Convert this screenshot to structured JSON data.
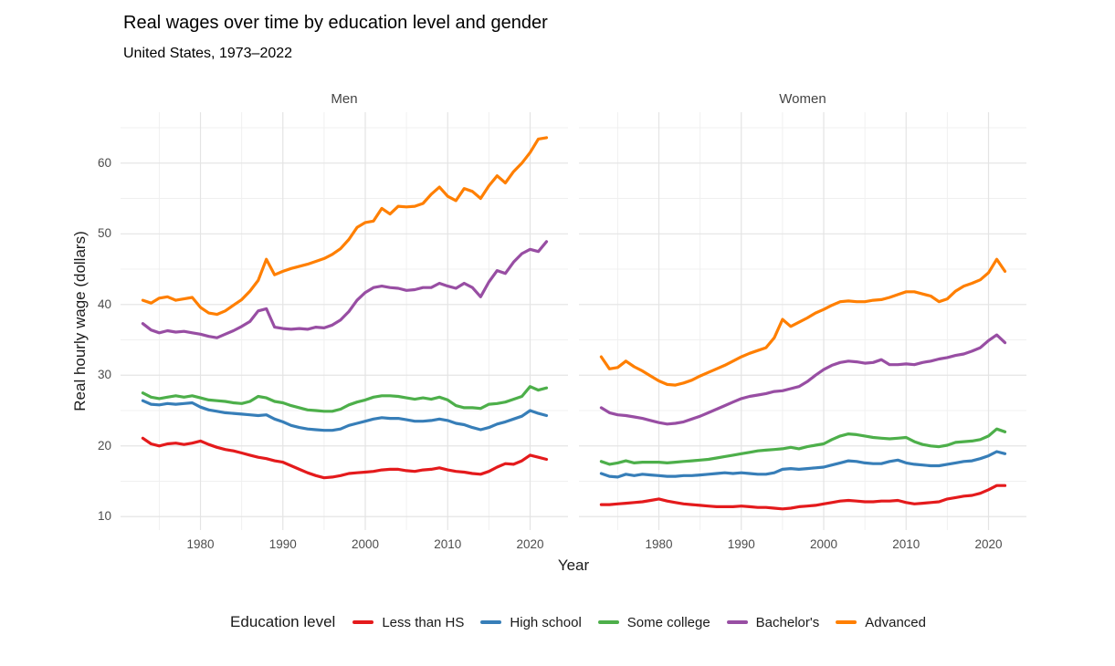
{
  "title": "Real wages over time by education level and gender",
  "subtitle": "United States, 1973–2022",
  "axes": {
    "x_label": "Year",
    "y_label": "Real hourly wage (dollars)",
    "y_ticks": [
      10,
      20,
      30,
      40,
      50,
      60
    ],
    "y_minor_ticks": [
      15,
      25,
      35,
      45,
      55,
      65
    ],
    "x_ticks": [
      1980,
      1990,
      2000,
      2010,
      2020
    ],
    "x_minor_ticks": [
      1975,
      1985,
      1995,
      2005,
      2015,
      2025
    ]
  },
  "legend": {
    "title": "Education level",
    "items": [
      {
        "label": "Less than HS",
        "color": "#E41A1C"
      },
      {
        "label": "High school",
        "color": "#377EB8"
      },
      {
        "label": "Some college",
        "color": "#4DAF4A"
      },
      {
        "label": "Bachelor's",
        "color": "#984EA3"
      },
      {
        "label": "Advanced",
        "color": "#FF7F00"
      }
    ]
  },
  "style": {
    "grid_major_color": "#e4e4e4",
    "grid_minor_color": "#f0f0f0",
    "line_width": 3.2
  },
  "chart_data": {
    "type": "line",
    "title": "Real wages over time by education level and gender",
    "subtitle": "United States, 1973–2022",
    "xlabel": "Year",
    "ylabel": "Real hourly wage (dollars)",
    "facets": [
      "Men",
      "Women"
    ],
    "legend_position": "bottom",
    "grid": true,
    "xlim": [
      1970.3,
      2024.6
    ],
    "ylim": [
      8.1,
      67.2
    ],
    "x": [
      1973,
      1974,
      1975,
      1976,
      1977,
      1978,
      1979,
      1980,
      1981,
      1982,
      1983,
      1984,
      1985,
      1986,
      1987,
      1988,
      1989,
      1990,
      1991,
      1992,
      1993,
      1994,
      1995,
      1996,
      1997,
      1998,
      1999,
      2000,
      2001,
      2002,
      2003,
      2004,
      2005,
      2006,
      2007,
      2008,
      2009,
      2010,
      2011,
      2012,
      2013,
      2014,
      2015,
      2016,
      2017,
      2018,
      2019,
      2020,
      2021,
      2022
    ],
    "series": [
      {
        "name": "Less than HS",
        "color": "#E41A1C",
        "men": [
          21.1,
          20.3,
          20.0,
          20.3,
          20.4,
          20.2,
          20.4,
          20.7,
          20.2,
          19.8,
          19.5,
          19.3,
          19.0,
          18.7,
          18.4,
          18.2,
          17.9,
          17.7,
          17.2,
          16.7,
          16.2,
          15.8,
          15.5,
          15.6,
          15.8,
          16.1,
          16.2,
          16.3,
          16.4,
          16.6,
          16.7,
          16.7,
          16.5,
          16.4,
          16.6,
          16.7,
          16.9,
          16.6,
          16.4,
          16.3,
          16.1,
          16.0,
          16.4,
          17.0,
          17.5,
          17.4,
          17.9,
          18.7,
          18.4,
          18.1
        ],
        "women": [
          11.7,
          11.7,
          11.8,
          11.9,
          12.0,
          12.1,
          12.3,
          12.5,
          12.2,
          12.0,
          11.8,
          11.7,
          11.6,
          11.5,
          11.4,
          11.4,
          11.4,
          11.5,
          11.4,
          11.3,
          11.3,
          11.2,
          11.1,
          11.2,
          11.4,
          11.5,
          11.6,
          11.8,
          12.0,
          12.2,
          12.3,
          12.2,
          12.1,
          12.1,
          12.2,
          12.2,
          12.3,
          12.0,
          11.8,
          11.9,
          12.0,
          12.1,
          12.5,
          12.7,
          12.9,
          13.0,
          13.3,
          13.8,
          14.4,
          14.4
        ]
      },
      {
        "name": "High school",
        "color": "#377EB8",
        "men": [
          26.4,
          25.9,
          25.8,
          26.0,
          25.9,
          26.0,
          26.1,
          25.5,
          25.1,
          24.9,
          24.7,
          24.6,
          24.5,
          24.4,
          24.3,
          24.4,
          23.8,
          23.4,
          22.9,
          22.6,
          22.4,
          22.3,
          22.2,
          22.2,
          22.4,
          22.9,
          23.2,
          23.5,
          23.8,
          24.0,
          23.9,
          23.9,
          23.7,
          23.5,
          23.5,
          23.6,
          23.8,
          23.6,
          23.2,
          23.0,
          22.6,
          22.3,
          22.6,
          23.1,
          23.4,
          23.8,
          24.2,
          25.0,
          24.6,
          24.3
        ],
        "women": [
          16.1,
          15.7,
          15.6,
          16.0,
          15.8,
          16.0,
          15.9,
          15.8,
          15.7,
          15.7,
          15.8,
          15.8,
          15.9,
          16.0,
          16.1,
          16.2,
          16.1,
          16.2,
          16.1,
          16.0,
          16.0,
          16.2,
          16.7,
          16.8,
          16.7,
          16.8,
          16.9,
          17.0,
          17.3,
          17.6,
          17.9,
          17.8,
          17.6,
          17.5,
          17.5,
          17.8,
          18.0,
          17.6,
          17.4,
          17.3,
          17.2,
          17.2,
          17.4,
          17.6,
          17.8,
          17.9,
          18.2,
          18.6,
          19.2,
          18.9
        ]
      },
      {
        "name": "Some college",
        "color": "#4DAF4A",
        "men": [
          27.5,
          26.9,
          26.7,
          26.9,
          27.1,
          26.9,
          27.1,
          26.8,
          26.5,
          26.4,
          26.3,
          26.1,
          26.0,
          26.3,
          27.0,
          26.8,
          26.3,
          26.1,
          25.7,
          25.4,
          25.1,
          25.0,
          24.9,
          24.9,
          25.2,
          25.8,
          26.2,
          26.5,
          26.9,
          27.1,
          27.1,
          27.0,
          26.8,
          26.6,
          26.8,
          26.6,
          26.9,
          26.5,
          25.7,
          25.4,
          25.4,
          25.3,
          25.9,
          26.0,
          26.2,
          26.6,
          27.0,
          28.4,
          27.9,
          28.2
        ],
        "women": [
          17.8,
          17.4,
          17.6,
          17.9,
          17.6,
          17.7,
          17.7,
          17.7,
          17.6,
          17.7,
          17.8,
          17.9,
          18.0,
          18.1,
          18.3,
          18.5,
          18.7,
          18.9,
          19.1,
          19.3,
          19.4,
          19.5,
          19.6,
          19.8,
          19.6,
          19.9,
          20.1,
          20.3,
          20.9,
          21.4,
          21.7,
          21.6,
          21.4,
          21.2,
          21.1,
          21.0,
          21.1,
          21.2,
          20.6,
          20.2,
          20.0,
          19.9,
          20.1,
          20.5,
          20.6,
          20.7,
          20.9,
          21.4,
          22.4,
          22.0
        ]
      },
      {
        "name": "Bachelor's",
        "color": "#984EA3",
        "men": [
          37.3,
          36.4,
          36.0,
          36.3,
          36.1,
          36.2,
          36.0,
          35.8,
          35.5,
          35.3,
          35.8,
          36.3,
          36.9,
          37.6,
          39.1,
          39.4,
          36.8,
          36.6,
          36.5,
          36.6,
          36.5,
          36.8,
          36.7,
          37.1,
          37.8,
          39.0,
          40.6,
          41.7,
          42.4,
          42.6,
          42.4,
          42.3,
          42.0,
          42.1,
          42.4,
          42.4,
          43.0,
          42.6,
          42.3,
          43.0,
          42.4,
          41.1,
          43.2,
          44.8,
          44.4,
          46.0,
          47.2,
          47.8,
          47.5,
          48.9
        ],
        "women": [
          25.4,
          24.7,
          24.4,
          24.3,
          24.1,
          23.9,
          23.6,
          23.3,
          23.1,
          23.2,
          23.4,
          23.8,
          24.2,
          24.7,
          25.2,
          25.7,
          26.2,
          26.7,
          27.0,
          27.2,
          27.4,
          27.7,
          27.8,
          28.1,
          28.4,
          29.1,
          30.0,
          30.8,
          31.4,
          31.8,
          32.0,
          31.9,
          31.7,
          31.8,
          32.2,
          31.5,
          31.5,
          31.6,
          31.5,
          31.8,
          32.0,
          32.3,
          32.5,
          32.8,
          33.0,
          33.4,
          33.9,
          34.9,
          35.7,
          34.6
        ]
      },
      {
        "name": "Advanced",
        "color": "#FF7F00",
        "men": [
          40.6,
          40.2,
          40.9,
          41.1,
          40.6,
          40.8,
          41.0,
          39.6,
          38.8,
          38.6,
          39.1,
          39.9,
          40.7,
          41.9,
          43.4,
          46.4,
          44.2,
          44.7,
          45.1,
          45.4,
          45.7,
          46.1,
          46.5,
          47.1,
          47.9,
          49.2,
          50.9,
          51.6,
          51.8,
          53.6,
          52.8,
          53.9,
          53.8,
          53.9,
          54.3,
          55.6,
          56.6,
          55.3,
          54.7,
          56.4,
          56.0,
          55.0,
          56.8,
          58.2,
          57.2,
          58.8,
          60.0,
          61.5,
          63.4,
          63.6
        ],
        "women": [
          32.6,
          30.9,
          31.1,
          32.0,
          31.2,
          30.6,
          29.9,
          29.2,
          28.7,
          28.6,
          28.9,
          29.3,
          29.9,
          30.4,
          30.9,
          31.4,
          32.0,
          32.6,
          33.1,
          33.5,
          33.9,
          35.3,
          37.9,
          36.9,
          37.5,
          38.1,
          38.8,
          39.3,
          39.9,
          40.4,
          40.5,
          40.4,
          40.4,
          40.6,
          40.7,
          41.0,
          41.4,
          41.8,
          41.8,
          41.5,
          41.2,
          40.4,
          40.8,
          41.9,
          42.6,
          43.0,
          43.5,
          44.5,
          46.4,
          44.7
        ]
      }
    ]
  }
}
